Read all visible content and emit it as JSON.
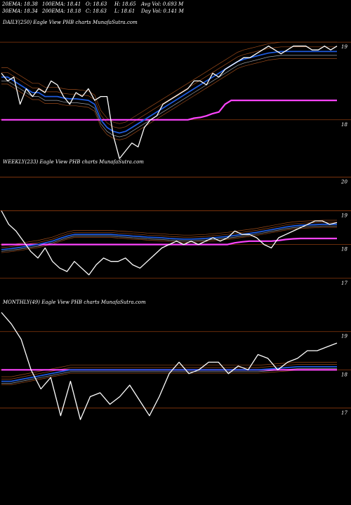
{
  "stats_header": {
    "row1": [
      "20EMA: 18.38",
      "100EMA: 18.41",
      "O: 18.63",
      "H: 18.65",
      "Avg Vol: 0.693 M"
    ],
    "row2": [
      "30EMA: 18.34",
      "200EMA: 18.18",
      "C: 18.63",
      "L: 18.61",
      "Day Vol: 0.141 M"
    ]
  },
  "colors": {
    "background": "#000000",
    "price": "#ffffff",
    "ema_blue": "#1e5adc",
    "ema_magenta": "#ff44ff",
    "ema_brown": "#9a4a1a",
    "ema_grey": "#9aa0a8",
    "gridline": "#8b3a0e"
  },
  "chart_data": [
    {
      "type": "line",
      "panel_label": "DAILY(250) Eagle   View  PHB charts MunafaSutra.com",
      "y_ticks": [
        "19",
        "18"
      ],
      "ylim": [
        17.6,
        19.2
      ],
      "series": [
        {
          "role": "price",
          "values": [
            18.6,
            18.5,
            18.55,
            18.2,
            18.4,
            18.3,
            18.4,
            18.35,
            18.5,
            18.45,
            18.3,
            18.2,
            18.35,
            18.3,
            18.4,
            18.25,
            18.3,
            18.3,
            17.8,
            17.5,
            17.6,
            17.7,
            17.65,
            17.9,
            18.0,
            18.05,
            18.2,
            18.25,
            18.3,
            18.35,
            18.4,
            18.5,
            18.5,
            18.45,
            18.6,
            18.55,
            18.65,
            18.7,
            18.75,
            18.8,
            18.8,
            18.85,
            18.9,
            18.95,
            18.9,
            18.85,
            18.9,
            18.95,
            18.95,
            18.95,
            18.9,
            18.9,
            18.95,
            18.9,
            18.95
          ]
        },
        {
          "role": "ema-blue",
          "values": [
            18.55,
            18.55,
            18.5,
            18.45,
            18.4,
            18.35,
            18.35,
            18.3,
            18.3,
            18.3,
            18.28,
            18.27,
            18.27,
            18.26,
            18.25,
            18.2,
            18.0,
            17.9,
            17.85,
            17.83,
            17.85,
            17.9,
            17.95,
            18.0,
            18.05,
            18.1,
            18.15,
            18.2,
            18.25,
            18.3,
            18.35,
            18.4,
            18.45,
            18.5,
            18.55,
            18.6,
            18.65,
            18.7,
            18.75,
            18.78,
            18.8,
            18.82,
            18.84,
            18.86,
            18.87,
            18.88,
            18.88,
            18.88,
            18.88,
            18.88,
            18.88,
            18.88,
            18.88,
            18.88,
            18.88
          ]
        },
        {
          "role": "ema-magenta",
          "values": [
            18.0,
            18.0,
            18.0,
            18.0,
            18.0,
            18.0,
            18.0,
            18.0,
            18.0,
            18.0,
            18.0,
            18.0,
            18.0,
            18.0,
            18.0,
            18.0,
            18.0,
            18.0,
            18.0,
            18.0,
            18.0,
            18.0,
            18.0,
            18.0,
            18.0,
            18.0,
            18.0,
            18.0,
            18.0,
            18.0,
            18.0,
            18.02,
            18.03,
            18.05,
            18.08,
            18.1,
            18.2,
            18.25,
            18.25,
            18.25,
            18.25,
            18.25,
            18.25,
            18.25,
            18.25,
            18.25,
            18.25,
            18.25,
            18.25,
            18.25,
            18.25,
            18.25,
            18.25,
            18.25,
            18.25
          ]
        }
      ]
    },
    {
      "type": "line",
      "panel_label": "WEEKLY(233) Eagle   View  PHB charts MunafaSutra.com",
      "y_ticks": [
        "20",
        "19",
        "18",
        "17"
      ],
      "ylim": [
        16.6,
        20.3
      ],
      "series": [
        {
          "role": "price",
          "values": [
            19.0,
            18.6,
            18.4,
            18.1,
            17.8,
            17.6,
            17.9,
            17.5,
            17.3,
            17.2,
            17.5,
            17.3,
            17.1,
            17.4,
            17.6,
            17.5,
            17.5,
            17.6,
            17.4,
            17.3,
            17.5,
            17.7,
            17.9,
            18.0,
            18.1,
            18.0,
            18.1,
            18.0,
            18.1,
            18.2,
            18.1,
            18.2,
            18.4,
            18.3,
            18.3,
            18.2,
            18.0,
            17.9,
            18.2,
            18.3,
            18.4,
            18.5,
            18.6,
            18.7,
            18.7,
            18.6,
            18.65
          ]
        },
        {
          "role": "ema-blue",
          "values": [
            17.85,
            17.87,
            17.9,
            17.93,
            17.97,
            18.0,
            18.05,
            18.1,
            18.18,
            18.25,
            18.3,
            18.3,
            18.3,
            18.3,
            18.3,
            18.3,
            18.28,
            18.27,
            18.25,
            18.24,
            18.22,
            18.21,
            18.2,
            18.18,
            18.17,
            18.16,
            18.16,
            18.17,
            18.18,
            18.2,
            18.22,
            18.24,
            18.27,
            18.3,
            18.33,
            18.36,
            18.4,
            18.44,
            18.48,
            18.52,
            18.55,
            18.57,
            18.58,
            18.59,
            18.6,
            18.6,
            18.6
          ]
        },
        {
          "role": "ema-magenta",
          "values": [
            18.0,
            18.0,
            18.0,
            18.0,
            18.0,
            18.0,
            18.0,
            18.0,
            18.0,
            18.0,
            18.0,
            18.0,
            18.0,
            18.0,
            18.0,
            18.0,
            18.0,
            18.0,
            18.0,
            18.0,
            18.0,
            18.0,
            18.0,
            18.0,
            18.0,
            18.0,
            18.0,
            18.0,
            18.0,
            18.0,
            18.0,
            18.0,
            18.05,
            18.08,
            18.1,
            18.1,
            18.1,
            18.1,
            18.12,
            18.15,
            18.17,
            18.18,
            18.18,
            18.18,
            18.18,
            18.18,
            18.18
          ]
        }
      ]
    },
    {
      "type": "line",
      "panel_label": "MONTHLY(49) Eagle   View  PHB charts MunafaSutra.com",
      "y_ticks": [
        "19",
        "18",
        "17"
      ],
      "ylim": [
        16.3,
        19.6
      ],
      "series": [
        {
          "role": "price",
          "values": [
            19.5,
            19.2,
            18.8,
            18.0,
            17.5,
            17.8,
            16.8,
            17.7,
            16.7,
            17.3,
            17.4,
            17.1,
            17.3,
            17.6,
            17.2,
            16.8,
            17.3,
            17.9,
            18.2,
            17.9,
            18.0,
            18.2,
            18.2,
            17.9,
            18.1,
            18.0,
            18.4,
            18.3,
            18.0,
            18.2,
            18.3,
            18.5,
            18.5,
            18.6,
            18.7
          ]
        },
        {
          "role": "ema-blue",
          "values": [
            17.7,
            17.7,
            17.75,
            17.8,
            17.85,
            17.9,
            17.95,
            18.0,
            18.0,
            18.0,
            18.0,
            18.0,
            18.0,
            18.0,
            18.0,
            18.0,
            18.0,
            18.0,
            18.0,
            18.0,
            18.0,
            18.0,
            18.0,
            18.0,
            18.0,
            18.0,
            18.0,
            18.02,
            18.04,
            18.06,
            18.08,
            18.08,
            18.08,
            18.08,
            18.08
          ]
        },
        {
          "role": "ema-magenta",
          "values": [
            18.0,
            18.0,
            18.0,
            18.0,
            18.0,
            18.0,
            18.0,
            18.0,
            18.0,
            18.0,
            18.0,
            18.0,
            18.0,
            18.0,
            18.0,
            18.0,
            18.0,
            18.0,
            18.0,
            18.0,
            18.0,
            18.0,
            18.0,
            18.0,
            18.0,
            18.0,
            18.0,
            18.0,
            18.0,
            18.0,
            18.0,
            18.0,
            18.0,
            18.0,
            18.0
          ]
        }
      ]
    }
  ]
}
